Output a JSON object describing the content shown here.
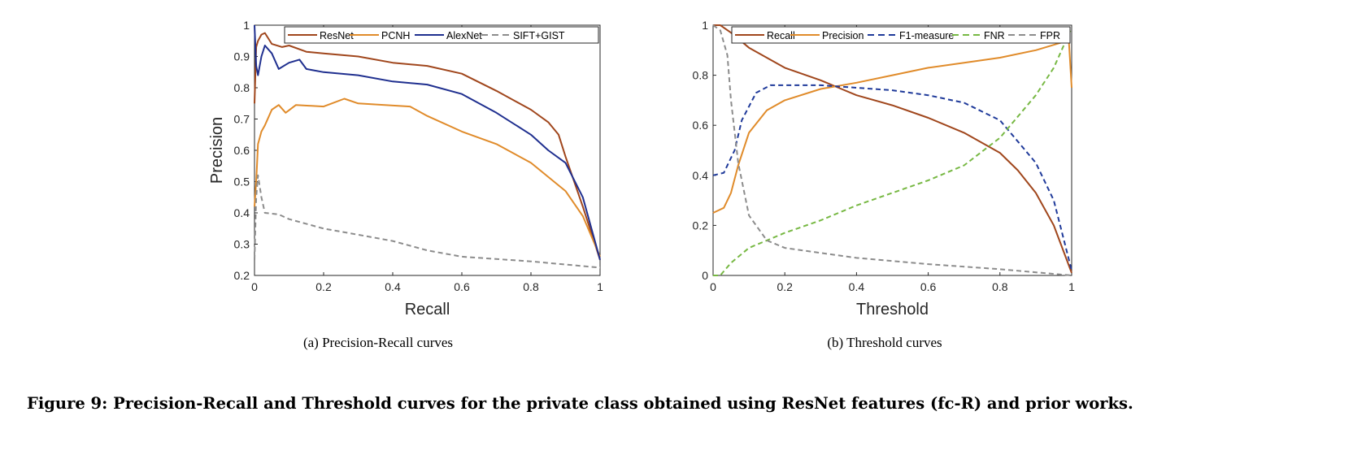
{
  "chart_data": [
    {
      "type": "line",
      "title": "",
      "xlabel": "Recall",
      "ylabel": "Precision",
      "xlim": [
        0,
        1
      ],
      "ylim": [
        0.2,
        1
      ],
      "xticks": [
        "0",
        "0.2",
        "0.4",
        "0.6",
        "0.8",
        "1"
      ],
      "yticks": [
        "0.2",
        "0.3",
        "0.4",
        "0.5",
        "0.6",
        "0.7",
        "0.8",
        "0.9",
        "1"
      ],
      "legend_position": "top",
      "grid": false,
      "series": [
        {
          "name": "ResNet",
          "color": "#a0461c",
          "dash": "solid",
          "points": [
            [
              0,
              0.75
            ],
            [
              0.005,
              0.93
            ],
            [
              0.01,
              0.95
            ],
            [
              0.02,
              0.97
            ],
            [
              0.03,
              0.975
            ],
            [
              0.05,
              0.94
            ],
            [
              0.08,
              0.93
            ],
            [
              0.1,
              0.935
            ],
            [
              0.15,
              0.915
            ],
            [
              0.2,
              0.91
            ],
            [
              0.3,
              0.9
            ],
            [
              0.4,
              0.88
            ],
            [
              0.5,
              0.87
            ],
            [
              0.6,
              0.845
            ],
            [
              0.7,
              0.79
            ],
            [
              0.8,
              0.73
            ],
            [
              0.85,
              0.69
            ],
            [
              0.88,
              0.65
            ],
            [
              0.9,
              0.58
            ],
            [
              0.95,
              0.42
            ],
            [
              1,
              0.25
            ]
          ]
        },
        {
          "name": "PCNH",
          "color": "#e08b2a",
          "dash": "solid",
          "points": [
            [
              0,
              0.42
            ],
            [
              0.005,
              0.5
            ],
            [
              0.01,
              0.62
            ],
            [
              0.02,
              0.66
            ],
            [
              0.03,
              0.68
            ],
            [
              0.05,
              0.73
            ],
            [
              0.07,
              0.745
            ],
            [
              0.09,
              0.72
            ],
            [
              0.12,
              0.745
            ],
            [
              0.2,
              0.74
            ],
            [
              0.26,
              0.765
            ],
            [
              0.3,
              0.75
            ],
            [
              0.45,
              0.74
            ],
            [
              0.5,
              0.71
            ],
            [
              0.6,
              0.66
            ],
            [
              0.7,
              0.62
            ],
            [
              0.8,
              0.56
            ],
            [
              0.9,
              0.47
            ],
            [
              0.95,
              0.39
            ],
            [
              1,
              0.26
            ]
          ]
        },
        {
          "name": "AlexNet",
          "color": "#1f2f8f",
          "dash": "solid",
          "points": [
            [
              0,
              1
            ],
            [
              0.005,
              0.87
            ],
            [
              0.01,
              0.84
            ],
            [
              0.02,
              0.9
            ],
            [
              0.03,
              0.935
            ],
            [
              0.05,
              0.91
            ],
            [
              0.07,
              0.86
            ],
            [
              0.1,
              0.88
            ],
            [
              0.13,
              0.89
            ],
            [
              0.15,
              0.86
            ],
            [
              0.2,
              0.85
            ],
            [
              0.3,
              0.84
            ],
            [
              0.4,
              0.82
            ],
            [
              0.5,
              0.81
            ],
            [
              0.6,
              0.78
            ],
            [
              0.7,
              0.72
            ],
            [
              0.8,
              0.65
            ],
            [
              0.85,
              0.6
            ],
            [
              0.9,
              0.56
            ],
            [
              0.95,
              0.45
            ],
            [
              1,
              0.25
            ]
          ]
        },
        {
          "name": "SIFT+GIST",
          "color": "#8c8c8c",
          "dash": "dashed",
          "points": [
            [
              0,
              0.25
            ],
            [
              0.005,
              0.45
            ],
            [
              0.01,
              0.52
            ],
            [
              0.02,
              0.45
            ],
            [
              0.03,
              0.4
            ],
            [
              0.07,
              0.395
            ],
            [
              0.1,
              0.38
            ],
            [
              0.2,
              0.35
            ],
            [
              0.3,
              0.33
            ],
            [
              0.4,
              0.31
            ],
            [
              0.5,
              0.28
            ],
            [
              0.6,
              0.26
            ],
            [
              0.8,
              0.245
            ],
            [
              1,
              0.225
            ]
          ]
        }
      ],
      "caption": "(a)  Precision-Recall curves"
    },
    {
      "type": "line",
      "title": "",
      "xlabel": "Threshold",
      "ylabel": "",
      "xlim": [
        0,
        1
      ],
      "ylim": [
        0,
        1
      ],
      "xticks": [
        "0",
        "0.2",
        "0.4",
        "0.6",
        "0.8",
        "1"
      ],
      "yticks": [
        "0",
        "0.2",
        "0.4",
        "0.6",
        "0.8",
        "1"
      ],
      "legend_position": "top",
      "grid": false,
      "series": [
        {
          "name": "Recall",
          "color": "#a0461c",
          "dash": "solid",
          "points": [
            [
              0,
              1
            ],
            [
              0.02,
              1
            ],
            [
              0.05,
              0.97
            ],
            [
              0.1,
              0.91
            ],
            [
              0.2,
              0.83
            ],
            [
              0.3,
              0.78
            ],
            [
              0.35,
              0.75
            ],
            [
              0.4,
              0.72
            ],
            [
              0.5,
              0.68
            ],
            [
              0.6,
              0.63
            ],
            [
              0.7,
              0.57
            ],
            [
              0.8,
              0.49
            ],
            [
              0.85,
              0.42
            ],
            [
              0.9,
              0.33
            ],
            [
              0.95,
              0.2
            ],
            [
              1,
              0.01
            ]
          ]
        },
        {
          "name": "Precision",
          "color": "#e08b2a",
          "dash": "solid",
          "points": [
            [
              0,
              0.25
            ],
            [
              0.03,
              0.27
            ],
            [
              0.05,
              0.33
            ],
            [
              0.07,
              0.44
            ],
            [
              0.1,
              0.57
            ],
            [
              0.15,
              0.66
            ],
            [
              0.2,
              0.7
            ],
            [
              0.3,
              0.745
            ],
            [
              0.4,
              0.77
            ],
            [
              0.5,
              0.8
            ],
            [
              0.6,
              0.83
            ],
            [
              0.7,
              0.85
            ],
            [
              0.8,
              0.87
            ],
            [
              0.9,
              0.9
            ],
            [
              0.97,
              0.93
            ],
            [
              0.99,
              0.99
            ],
            [
              1,
              0.75
            ]
          ]
        },
        {
          "name": "F1-measure",
          "color": "#1f3a9a",
          "dash": "dashed",
          "points": [
            [
              0,
              0.4
            ],
            [
              0.03,
              0.41
            ],
            [
              0.06,
              0.5
            ],
            [
              0.08,
              0.62
            ],
            [
              0.12,
              0.73
            ],
            [
              0.16,
              0.76
            ],
            [
              0.3,
              0.76
            ],
            [
              0.4,
              0.75
            ],
            [
              0.5,
              0.74
            ],
            [
              0.6,
              0.72
            ],
            [
              0.7,
              0.69
            ],
            [
              0.8,
              0.62
            ],
            [
              0.9,
              0.45
            ],
            [
              0.95,
              0.3
            ],
            [
              1,
              0.02
            ]
          ]
        },
        {
          "name": "FNR",
          "color": "#77b843",
          "dash": "dashed",
          "points": [
            [
              0,
              0
            ],
            [
              0.02,
              0
            ],
            [
              0.05,
              0.05
            ],
            [
              0.1,
              0.11
            ],
            [
              0.15,
              0.14
            ],
            [
              0.2,
              0.17
            ],
            [
              0.3,
              0.22
            ],
            [
              0.4,
              0.28
            ],
            [
              0.5,
              0.33
            ],
            [
              0.6,
              0.38
            ],
            [
              0.7,
              0.44
            ],
            [
              0.8,
              0.55
            ],
            [
              0.9,
              0.72
            ],
            [
              0.95,
              0.83
            ],
            [
              1,
              0.99
            ]
          ]
        },
        {
          "name": "FPR",
          "color": "#8c8c8c",
          "dash": "dashed",
          "points": [
            [
              0,
              1
            ],
            [
              0.02,
              0.98
            ],
            [
              0.04,
              0.88
            ],
            [
              0.05,
              0.7
            ],
            [
              0.07,
              0.45
            ],
            [
              0.1,
              0.24
            ],
            [
              0.15,
              0.14
            ],
            [
              0.2,
              0.11
            ],
            [
              0.3,
              0.09
            ],
            [
              0.4,
              0.07
            ],
            [
              0.6,
              0.045
            ],
            [
              0.8,
              0.025
            ],
            [
              1,
              0
            ]
          ]
        }
      ],
      "caption": "(b)  Threshold curves"
    }
  ],
  "figure_caption": "Figure 9:  Precision-Recall and Threshold curves for the private class obtained using ResNet features (fc-R) and prior works."
}
